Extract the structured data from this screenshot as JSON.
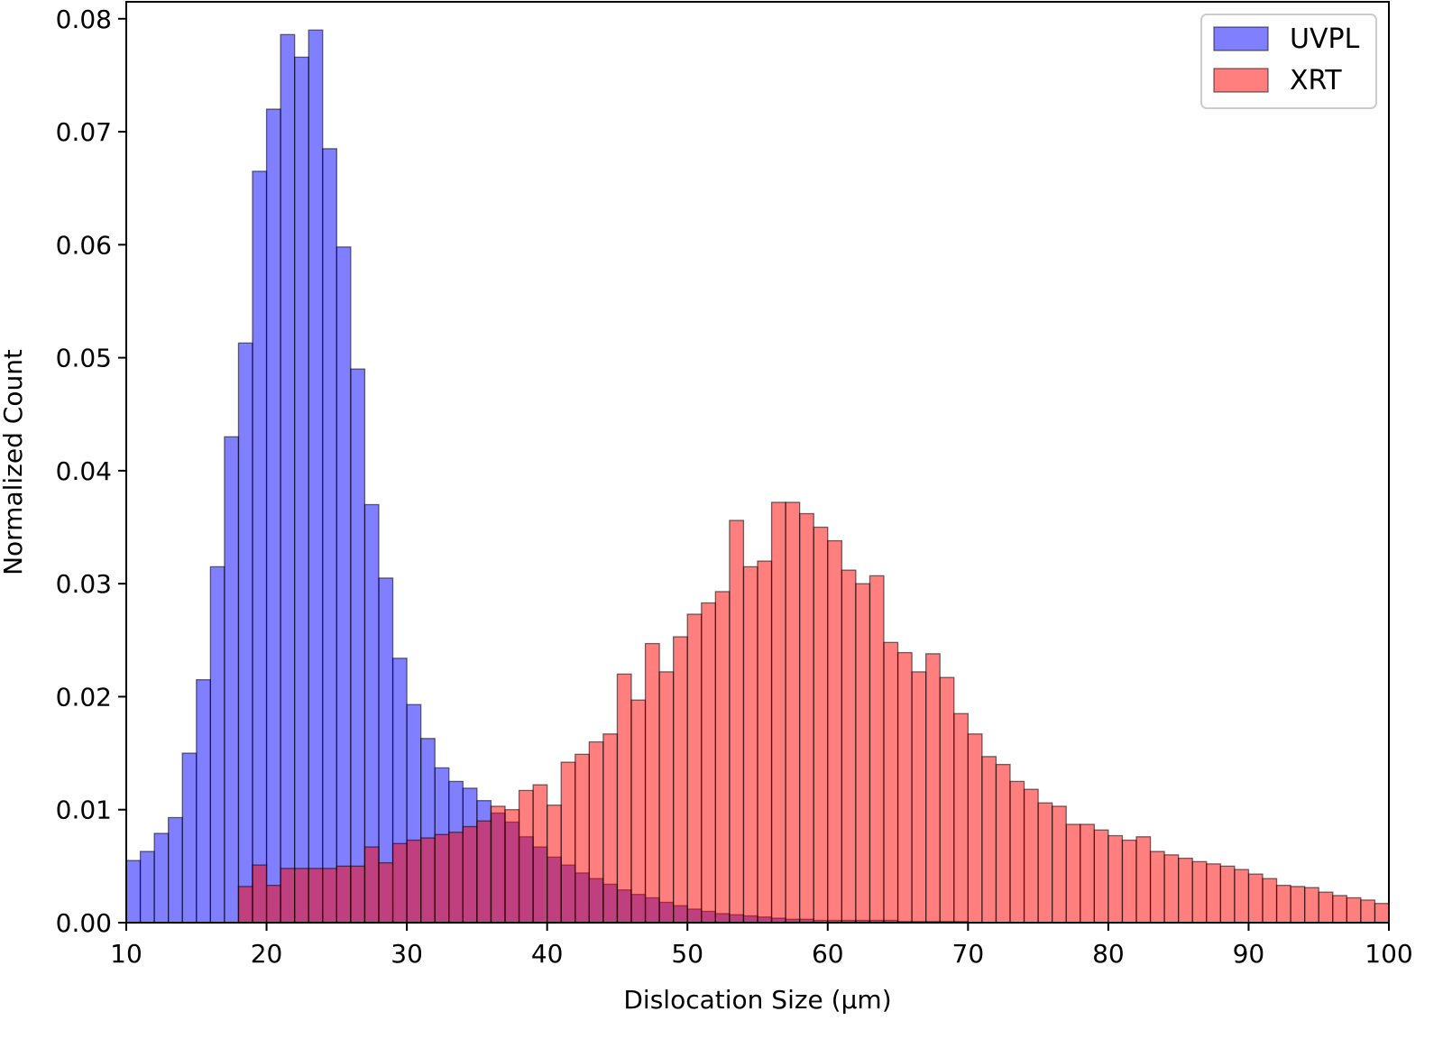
{
  "chart_data": {
    "type": "bar",
    "subtype": "overlapping-histogram",
    "xlabel": "Dislocation Size (μm)",
    "ylabel": "Normalized Count",
    "xlim": [
      10,
      100
    ],
    "ylim": [
      0,
      0.0815
    ],
    "bin_width": 1,
    "x_ticks": [
      10,
      20,
      30,
      40,
      50,
      60,
      70,
      80,
      90,
      100
    ],
    "y_ticks": [
      0.0,
      0.01,
      0.02,
      0.03,
      0.04,
      0.05,
      0.06,
      0.07,
      0.08
    ],
    "x_tick_labels": [
      "10",
      "20",
      "30",
      "40",
      "50",
      "60",
      "70",
      "80",
      "90",
      "100"
    ],
    "y_tick_labels": [
      "0.00",
      "0.01",
      "0.02",
      "0.03",
      "0.04",
      "0.05",
      "0.06",
      "0.07",
      "0.08"
    ],
    "grid": false,
    "legend": "top-right",
    "series": [
      {
        "name": "UVPL",
        "color": "#0000ff",
        "opacity": 0.5,
        "bin_start": 10,
        "values": [
          0.0055,
          0.0063,
          0.0079,
          0.0093,
          0.015,
          0.0215,
          0.0315,
          0.043,
          0.0513,
          0.0665,
          0.072,
          0.0786,
          0.0766,
          0.079,
          0.0685,
          0.0598,
          0.049,
          0.037,
          0.0305,
          0.0234,
          0.0193,
          0.0163,
          0.0137,
          0.0125,
          0.0119,
          0.0108,
          0.0097,
          0.0089,
          0.0076,
          0.0067,
          0.0058,
          0.0051,
          0.0044,
          0.0039,
          0.0034,
          0.0029,
          0.0025,
          0.0022,
          0.0018,
          0.0015,
          0.0012,
          0.001,
          0.0008,
          0.0007,
          0.0006,
          0.0005,
          0.0004,
          0.0003,
          0.0003,
          0.0002,
          0.0002,
          0.0002,
          0.0002,
          0.0002,
          0.0002,
          0.0001,
          0.0001,
          0.0001,
          0.0001,
          0.0001
        ]
      },
      {
        "name": "XRT",
        "color": "#ff0000",
        "opacity": 0.5,
        "bin_start": 18,
        "values": [
          0.0032,
          0.0051,
          0.0033,
          0.0048,
          0.0048,
          0.0048,
          0.0048,
          0.005,
          0.005,
          0.0067,
          0.0053,
          0.007,
          0.0073,
          0.0075,
          0.0078,
          0.008,
          0.0085,
          0.009,
          0.0103,
          0.01,
          0.0117,
          0.0122,
          0.0104,
          0.0142,
          0.0149,
          0.016,
          0.0167,
          0.022,
          0.0197,
          0.0247,
          0.0222,
          0.0253,
          0.0273,
          0.0283,
          0.0293,
          0.0356,
          0.0315,
          0.032,
          0.0372,
          0.0372,
          0.0362,
          0.035,
          0.0338,
          0.0312,
          0.03,
          0.0307,
          0.0248,
          0.0239,
          0.0222,
          0.0238,
          0.0217,
          0.0185,
          0.0167,
          0.0147,
          0.014,
          0.0125,
          0.0118,
          0.0106,
          0.0103,
          0.0087,
          0.0087,
          0.0082,
          0.0077,
          0.0073,
          0.0076,
          0.0063,
          0.006,
          0.0057,
          0.0054,
          0.0052,
          0.005,
          0.0047,
          0.0043,
          0.0039,
          0.0033,
          0.0032,
          0.0031,
          0.0027,
          0.0024,
          0.0022,
          0.002,
          0.0017,
          0.0013,
          0.0011,
          0.0009,
          0.0008,
          0.0006,
          0.0006,
          0.0005,
          0.0004,
          0.0004,
          0.0004
        ]
      }
    ]
  }
}
